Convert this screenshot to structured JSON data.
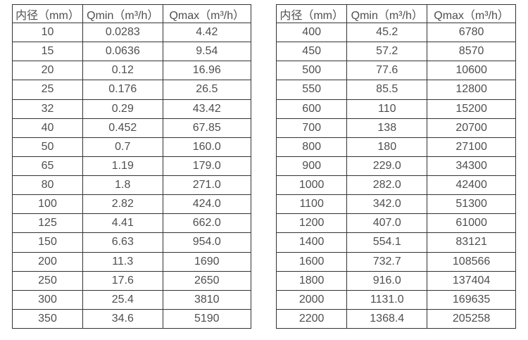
{
  "page": {
    "background_color": "#ffffff",
    "text_color": "#4f4f4f",
    "border_color": "#333333"
  },
  "tables": [
    {
      "name": "flow-table-small-diameters",
      "headers": [
        "内径（mm）",
        "Qmin（m³/h）",
        "Qmax（m³/h）"
      ],
      "rows": [
        [
          "10",
          "0.0283",
          "4.42"
        ],
        [
          "15",
          "0.0636",
          "9.54"
        ],
        [
          "20",
          "0.12",
          "16.96"
        ],
        [
          "25",
          "0.176",
          "26.5"
        ],
        [
          "32",
          "0.29",
          "43.42"
        ],
        [
          "40",
          "0.452",
          "67.85"
        ],
        [
          "50",
          "0.7",
          "160.0"
        ],
        [
          "65",
          "1.19",
          "179.0"
        ],
        [
          "80",
          "1.8",
          "271.0"
        ],
        [
          "100",
          "2.82",
          "424.0"
        ],
        [
          "125",
          "4.41",
          "662.0"
        ],
        [
          "150",
          "6.63",
          "954.0"
        ],
        [
          "200",
          "11.3",
          "1690"
        ],
        [
          "250",
          "17.6",
          "2650"
        ],
        [
          "300",
          "25.4",
          "3810"
        ],
        [
          "350",
          "34.6",
          "5190"
        ]
      ]
    },
    {
      "name": "flow-table-large-diameters",
      "headers": [
        "内径（mm）",
        "Qmin（m³/h）",
        "Qmax（m³/h）"
      ],
      "rows": [
        [
          "400",
          "45.2",
          "6780"
        ],
        [
          "450",
          "57.2",
          "8570"
        ],
        [
          "500",
          "77.6",
          "10600"
        ],
        [
          "550",
          "85.5",
          "12800"
        ],
        [
          "600",
          "110",
          "15200"
        ],
        [
          "700",
          "138",
          "20700"
        ],
        [
          "800",
          "180",
          "27100"
        ],
        [
          "900",
          "229.0",
          "34300"
        ],
        [
          "1000",
          "282.0",
          "42400"
        ],
        [
          "1100",
          "342.0",
          "51300"
        ],
        [
          "1200",
          "407.0",
          "61000"
        ],
        [
          "1400",
          "554.1",
          "83121"
        ],
        [
          "1600",
          "732.7",
          "108566"
        ],
        [
          "1800",
          "916.0",
          "137404"
        ],
        [
          "2000",
          "1131.0",
          "169635"
        ],
        [
          "2200",
          "1368.4",
          "205258"
        ]
      ]
    }
  ]
}
